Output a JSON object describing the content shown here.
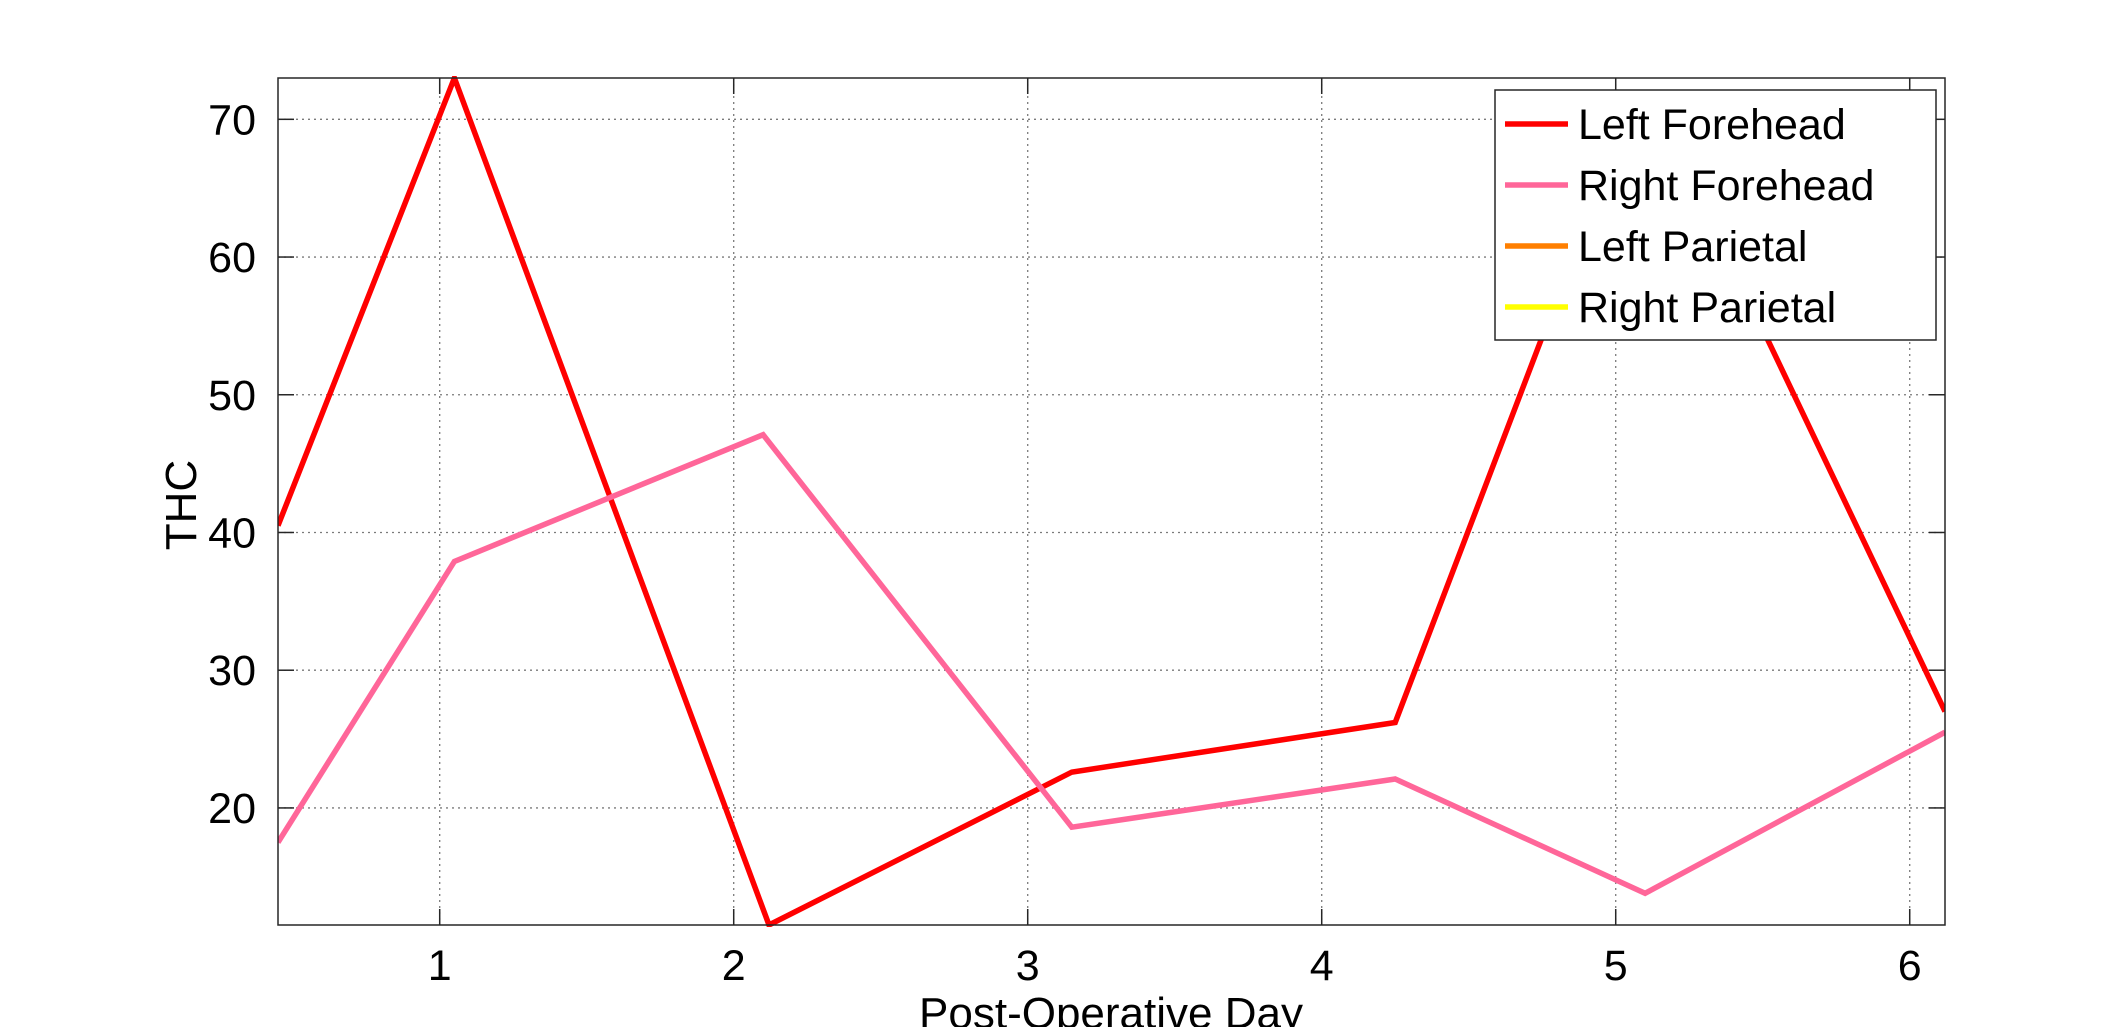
{
  "chart_data": {
    "type": "line",
    "title": "",
    "xlabel": "Post-Operative Day",
    "ylabel": "THC",
    "xlim": [
      0.45,
      6.12
    ],
    "ylim": [
      11.5,
      73
    ],
    "xticks": [
      1,
      2,
      3,
      4,
      5,
      6
    ],
    "yticks": [
      20,
      30,
      40,
      50,
      60,
      70
    ],
    "grid": true,
    "legend_position": "top-right",
    "series": [
      {
        "name": "Left Forehead",
        "color": "#ff0000",
        "x": [
          0.45,
          1.05,
          2.12,
          3.15,
          4.25,
          4.8,
          5.45,
          6.12
        ],
        "y": [
          40.5,
          73,
          11.5,
          22.6,
          26.2,
          57,
          57,
          27
        ]
      },
      {
        "name": "Right Forehead",
        "color": "#ff6699",
        "x": [
          0.45,
          1.05,
          2.1,
          3.15,
          4.25,
          5.1,
          6.12
        ],
        "y": [
          17.5,
          37.9,
          47.1,
          18.6,
          22.1,
          13.8,
          25.5
        ]
      },
      {
        "name": "Left Parietal",
        "color": "#ff7f00",
        "x": [],
        "y": []
      },
      {
        "name": "Right Parietal",
        "color": "#ffff00",
        "x": [],
        "y": []
      }
    ]
  }
}
